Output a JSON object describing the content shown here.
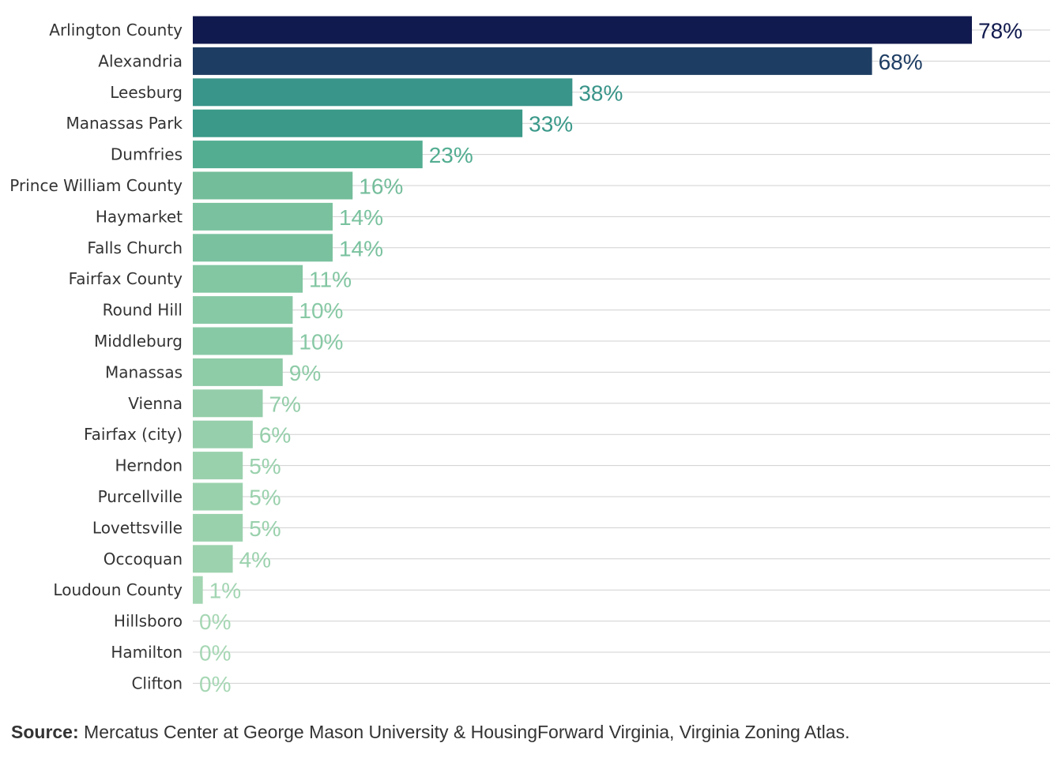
{
  "chart_data": {
    "type": "bar",
    "orientation": "horizontal",
    "title": "",
    "xlabel": "",
    "ylabel": "",
    "xlim": [
      0,
      78
    ],
    "grid": true,
    "legend": "none",
    "categories": [
      "Arlington County",
      "Alexandria",
      "Leesburg",
      "Manassas Park",
      "Dumfries",
      "Prince William County",
      "Haymarket",
      "Falls Church",
      "Fairfax County",
      "Round Hill",
      "Middleburg",
      "Manassas",
      "Vienna",
      "Fairfax (city)",
      "Herndon",
      "Purcellville",
      "Lovettsville",
      "Occoquan",
      "Loudoun County",
      "Hillsboro",
      "Hamilton",
      "Clifton"
    ],
    "values": [
      78,
      68,
      38,
      33,
      23,
      16,
      14,
      14,
      11,
      10,
      10,
      9,
      7,
      6,
      5,
      5,
      5,
      4,
      1,
      0,
      0,
      0
    ],
    "value_labels": [
      "78%",
      "68%",
      "38%",
      "33%",
      "23%",
      "16%",
      "14%",
      "14%",
      "11%",
      "10%",
      "10%",
      "9%",
      "7%",
      "6%",
      "5%",
      "5%",
      "5%",
      "4%",
      "1%",
      "0%",
      "0%",
      "0%"
    ],
    "colors": [
      "#111a4e",
      "#1e3d63",
      "#399489",
      "#3a9989",
      "#53ad91",
      "#74bd9b",
      "#7ac29f",
      "#7ac29f",
      "#82c6a2",
      "#88c9a5",
      "#88c9a5",
      "#8ecba7",
      "#93cda9",
      "#96cfab",
      "#9ad1ad",
      "#9ad1ad",
      "#9ad1ad",
      "#9cd2ae",
      "#a2d5b2",
      "#a6d7b4",
      "#a6d7b4",
      "#a6d7b4"
    ]
  },
  "footer": {
    "source_label": "Source:",
    "source_text": " Mercatus Center at George Mason University & HousingForward Virginia, Virginia Zoning Atlas."
  }
}
